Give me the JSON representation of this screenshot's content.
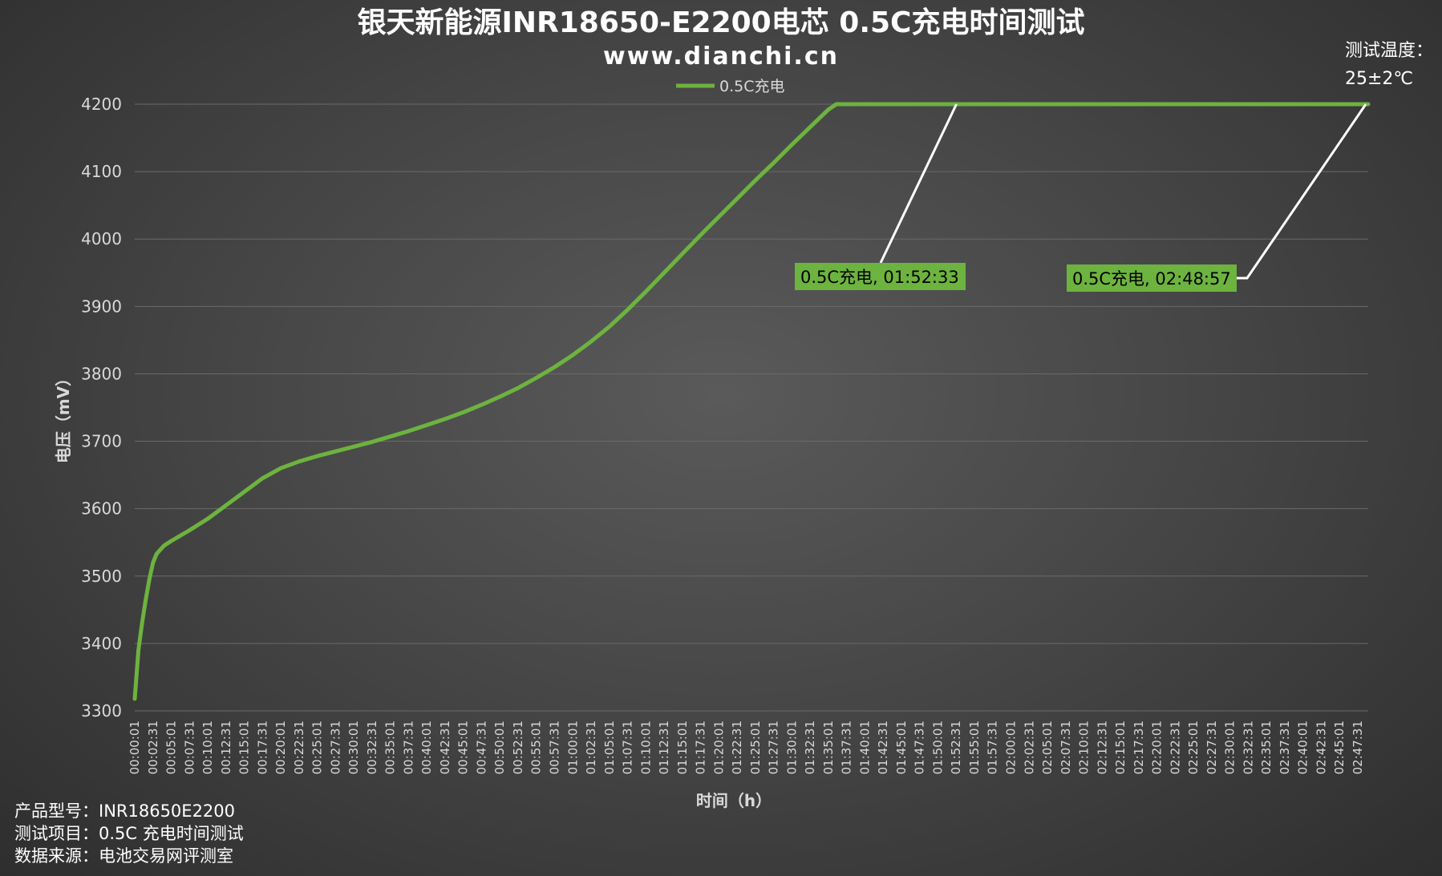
{
  "chart_data": {
    "type": "line",
    "title": "银天新能源INR18650-E2200电芯 0.5C充电时间测试",
    "subtitle": "www.dianchi.cn",
    "xlabel": "时间（h）",
    "ylabel": "电压（mV）",
    "ylim": [
      3300,
      4200
    ],
    "yticks": [
      "3300",
      "3400",
      "3500",
      "3600",
      "3700",
      "3800",
      "3900",
      "4000",
      "4100",
      "4200"
    ],
    "grid": true,
    "legend_position": "top-center",
    "x_tick_labels": [
      "00:00:01",
      "00:02:31",
      "00:05:01",
      "00:07:31",
      "00:10:01",
      "00:12:31",
      "00:15:01",
      "00:17:31",
      "00:20:01",
      "00:22:31",
      "00:25:01",
      "00:27:31",
      "00:30:01",
      "00:32:31",
      "00:35:01",
      "00:37:31",
      "00:40:01",
      "00:42:31",
      "00:45:01",
      "00:47:31",
      "00:50:01",
      "00:52:31",
      "00:55:01",
      "00:57:31",
      "01:00:01",
      "01:02:31",
      "01:05:01",
      "01:07:31",
      "01:10:01",
      "01:12:31",
      "01:15:01",
      "01:17:31",
      "01:20:01",
      "01:22:31",
      "01:25:01",
      "01:27:31",
      "01:30:01",
      "01:32:31",
      "01:35:01",
      "01:37:31",
      "01:40:01",
      "01:42:31",
      "01:45:01",
      "01:47:31",
      "01:50:01",
      "01:52:31",
      "01:55:01",
      "01:57:31",
      "02:00:01",
      "02:02:31",
      "02:05:01",
      "02:07:31",
      "02:10:01",
      "02:12:31",
      "02:15:01",
      "02:17:31",
      "02:20:01",
      "02:22:31",
      "02:25:01",
      "02:27:31",
      "02:30:01",
      "02:32:31",
      "02:35:01",
      "02:37:31",
      "02:40:01",
      "02:42:31",
      "02:45:01",
      "02:47:31"
    ],
    "series": [
      {
        "name": "0.5C充电",
        "color": "#6db33f",
        "points": [
          [
            "00:00:01",
            3318
          ],
          [
            "00:00:31",
            3390
          ],
          [
            "00:01:01",
            3430
          ],
          [
            "00:01:31",
            3465
          ],
          [
            "00:02:01",
            3495
          ],
          [
            "00:02:31",
            3520
          ],
          [
            "00:03:01",
            3533
          ],
          [
            "00:04:01",
            3545
          ],
          [
            "00:05:01",
            3552
          ],
          [
            "00:07:31",
            3568
          ],
          [
            "00:10:01",
            3585
          ],
          [
            "00:12:31",
            3605
          ],
          [
            "00:15:01",
            3625
          ],
          [
            "00:17:31",
            3645
          ],
          [
            "00:20:01",
            3660
          ],
          [
            "00:22:31",
            3670
          ],
          [
            "00:25:01",
            3678
          ],
          [
            "00:27:31",
            3685
          ],
          [
            "00:30:01",
            3692
          ],
          [
            "00:32:31",
            3699
          ],
          [
            "00:35:01",
            3707
          ],
          [
            "00:37:31",
            3715
          ],
          [
            "00:40:01",
            3724
          ],
          [
            "00:42:31",
            3733
          ],
          [
            "00:45:01",
            3743
          ],
          [
            "00:47:31",
            3754
          ],
          [
            "00:50:01",
            3766
          ],
          [
            "00:52:31",
            3779
          ],
          [
            "00:55:01",
            3794
          ],
          [
            "00:57:31",
            3810
          ],
          [
            "01:00:01",
            3828
          ],
          [
            "01:02:31",
            3848
          ],
          [
            "01:05:01",
            3870
          ],
          [
            "01:07:31",
            3895
          ],
          [
            "01:10:01",
            3922
          ],
          [
            "01:12:31",
            3950
          ],
          [
            "01:15:01",
            3978
          ],
          [
            "01:17:31",
            4006
          ],
          [
            "01:20:01",
            4033
          ],
          [
            "01:22:31",
            4060
          ],
          [
            "01:25:01",
            4087
          ],
          [
            "01:27:31",
            4113
          ],
          [
            "01:30:01",
            4140
          ],
          [
            "01:32:31",
            4166
          ],
          [
            "01:35:01",
            4192
          ],
          [
            "01:36:06",
            4200
          ],
          [
            "02:48:57",
            4200
          ]
        ]
      }
    ],
    "annotations": [
      {
        "text": "0.5C充电, 01:52:33",
        "x": "01:52:33",
        "y": 4200
      },
      {
        "text": "0.5C充电, 02:48:57",
        "x": "02:48:57",
        "y": 4200
      }
    ]
  },
  "temperature_note": {
    "label": "测试温度：",
    "value": "25±2℃"
  },
  "info": [
    "产品型号：INR18650E2200",
    "测试项目：0.5C 充电时间测试",
    "数据来源：电池交易网评测室"
  ]
}
